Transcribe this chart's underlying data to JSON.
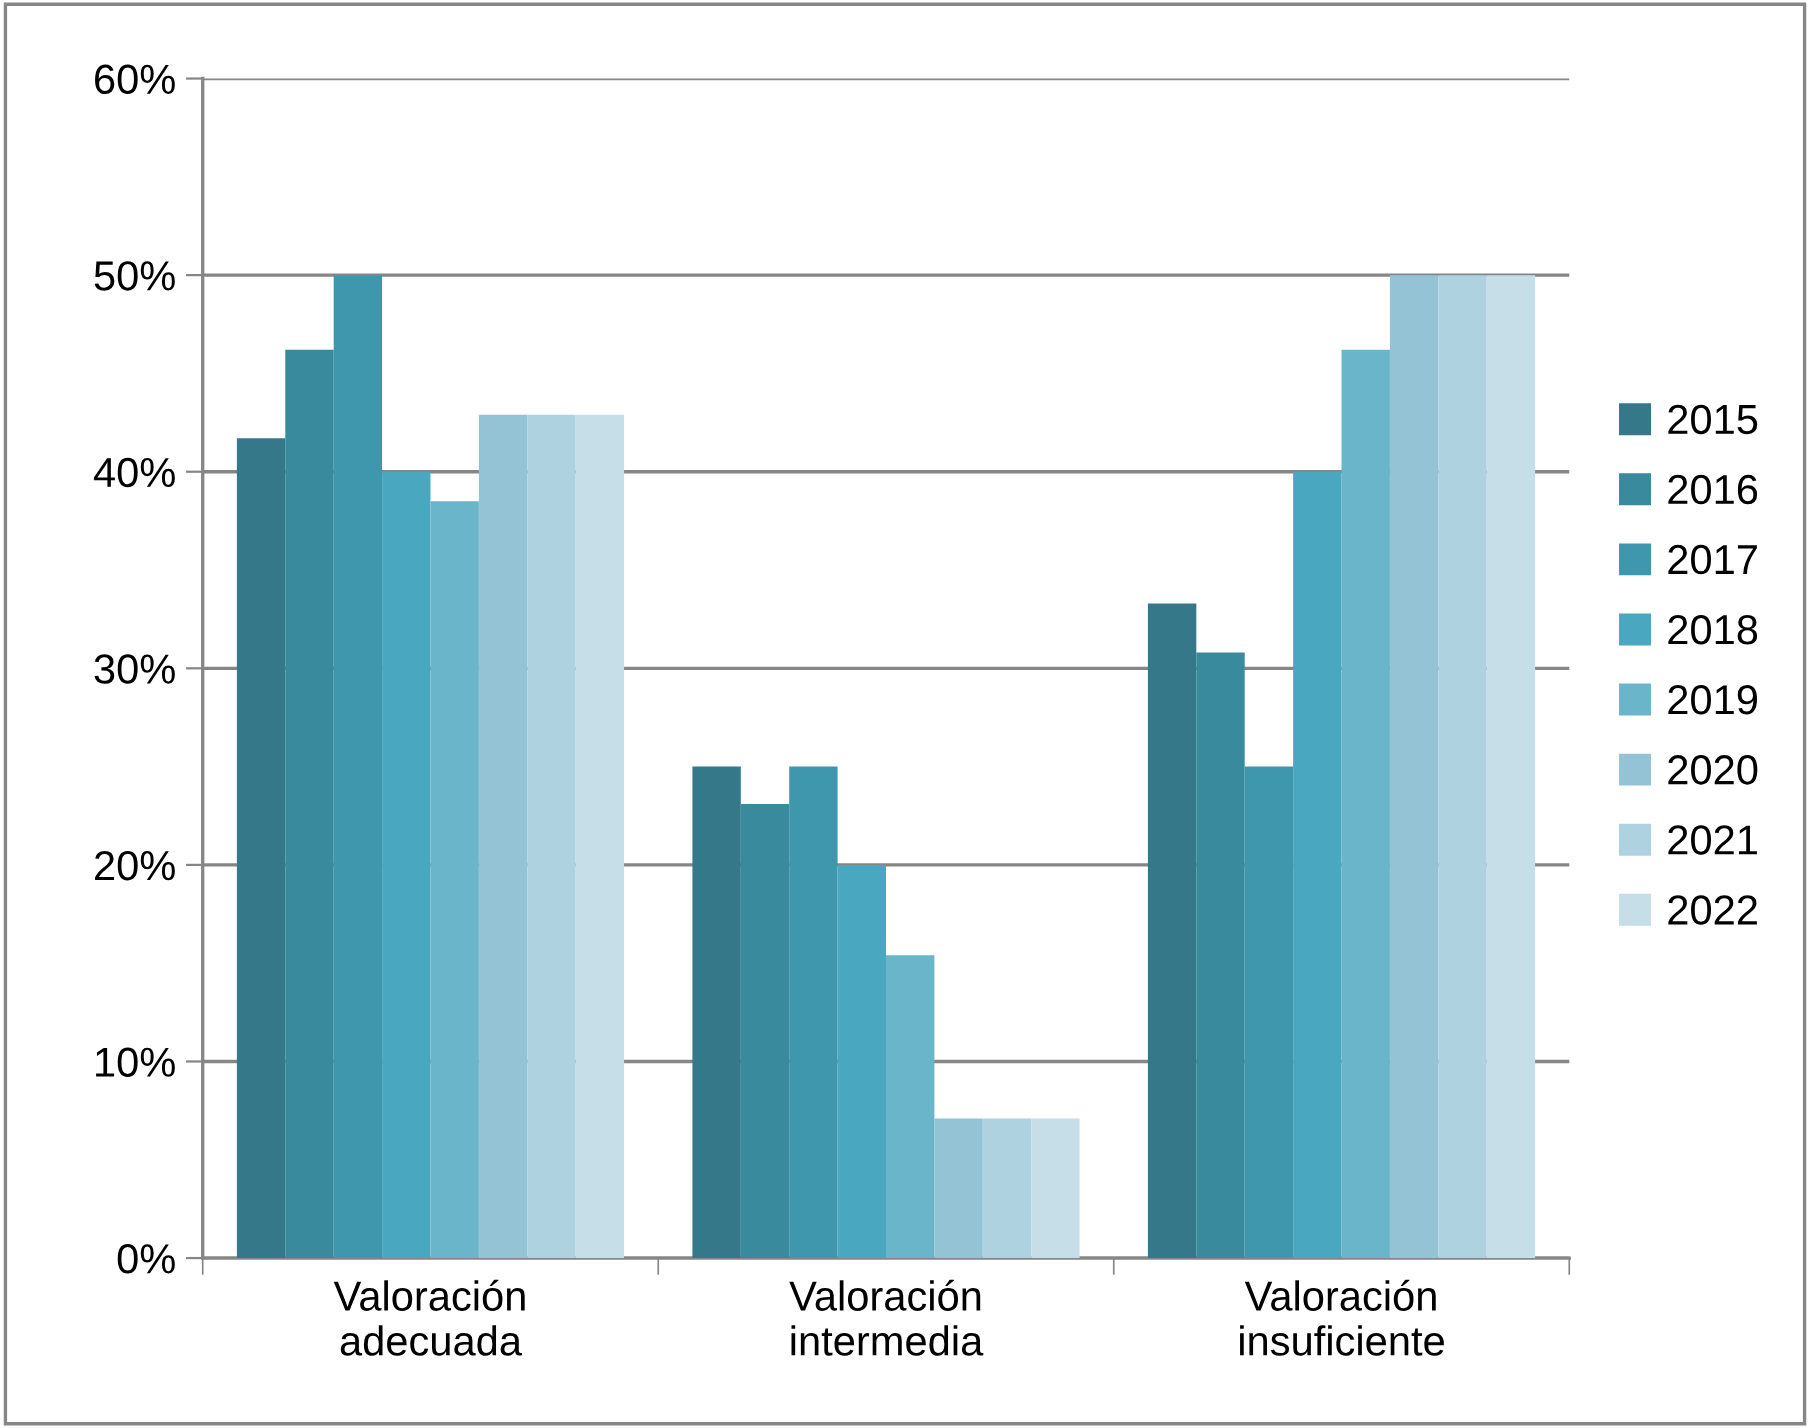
{
  "chart_data": {
    "type": "bar",
    "categories": [
      "Valoración\nadecuada",
      "Valoración\nintermedia",
      "Valoración\ninsuficiente"
    ],
    "series": [
      {
        "name": "2015",
        "color": "#34788a",
        "values": [
          41.7,
          25,
          33.3
        ]
      },
      {
        "name": "2016",
        "color": "#3a8a9e",
        "values": [
          46.2,
          23.1,
          30.8
        ]
      },
      {
        "name": "2017",
        "color": "#3f97ae",
        "values": [
          50,
          25,
          25
        ]
      },
      {
        "name": "2018",
        "color": "#4aa7c0",
        "values": [
          40,
          20,
          40
        ]
      },
      {
        "name": "2019",
        "color": "#6bb5cb",
        "values": [
          38.5,
          15.4,
          46.2
        ]
      },
      {
        "name": "2020",
        "color": "#93c3d5",
        "values": [
          42.9,
          7.1,
          50
        ]
      },
      {
        "name": "2021",
        "color": "#aed2df",
        "values": [
          42.9,
          7.1,
          50
        ]
      },
      {
        "name": "2022",
        "color": "#c6dee7",
        "values": [
          42.9,
          7.1,
          50
        ]
      }
    ],
    "ylim": [
      0,
      60
    ],
    "yticks": [
      {
        "value": 0,
        "label": "0%"
      },
      {
        "value": 10,
        "label": "10%"
      },
      {
        "value": 20,
        "label": "20%"
      },
      {
        "value": 30,
        "label": "30%"
      },
      {
        "value": 40,
        "label": "40%"
      },
      {
        "value": 50,
        "label": "50%"
      },
      {
        "value": 60,
        "label": "60%"
      }
    ],
    "grid": "y",
    "legend": "right"
  }
}
